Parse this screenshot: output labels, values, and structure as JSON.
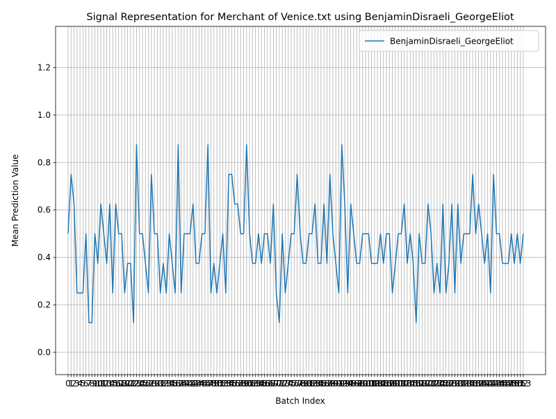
{
  "chart_data": {
    "type": "line",
    "title": "Signal Representation for Merchant of Venice.txt using BenjaminDisraeli_GeorgeEliot",
    "xlabel": "Batch Index",
    "ylabel": "Mean Prediction Value",
    "x": [
      0,
      1,
      2,
      3,
      4,
      5,
      6,
      7,
      8,
      9,
      10,
      11,
      12,
      13,
      14,
      15,
      16,
      17,
      18,
      19,
      20,
      21,
      22,
      23,
      24,
      25,
      26,
      27,
      28,
      29,
      30,
      31,
      32,
      33,
      34,
      35,
      36,
      37,
      38,
      39,
      40,
      41,
      42,
      43,
      44,
      45,
      46,
      47,
      48,
      49,
      50,
      51,
      52,
      53,
      54,
      55,
      56,
      57,
      58,
      59,
      60,
      61,
      62,
      63,
      64,
      65,
      66,
      67,
      68,
      69,
      70,
      71,
      72,
      73,
      74,
      75,
      76,
      77,
      78,
      79,
      80,
      81,
      82,
      83,
      84,
      85,
      86,
      87,
      88,
      89,
      90,
      91,
      92,
      93,
      94,
      95,
      96,
      97,
      98,
      99,
      100,
      101,
      102,
      103,
      104,
      105,
      106,
      107,
      108,
      109,
      110,
      111,
      112,
      113,
      114,
      115,
      116,
      117,
      118,
      119,
      120,
      121,
      122,
      123,
      124,
      125,
      126,
      127,
      128,
      129,
      130,
      131,
      132,
      133,
      134,
      135,
      136,
      137,
      138,
      139,
      140,
      141,
      142,
      143,
      144,
      145,
      146,
      147,
      148,
      149,
      150,
      151,
      152,
      153
    ],
    "series": [
      {
        "name": "BenjaminDisraeli_GeorgeEliot",
        "color": "#1f77b4",
        "values": [
          0.5,
          0.75,
          0.625,
          0.25,
          0.25,
          0.25,
          0.5,
          0.125,
          0.125,
          0.5,
          0.375,
          0.625,
          0.5,
          0.375,
          0.625,
          0.25,
          0.625,
          0.5,
          0.5,
          0.25,
          0.375,
          0.375,
          0.125,
          0.875,
          0.5,
          0.5,
          0.375,
          0.25,
          0.75,
          0.5,
          0.5,
          0.25,
          0.375,
          0.25,
          0.5,
          0.375,
          0.25,
          0.875,
          0.25,
          0.5,
          0.5,
          0.5,
          0.625,
          0.375,
          0.375,
          0.5,
          0.5,
          0.875,
          0.25,
          0.375,
          0.25,
          0.375,
          0.5,
          0.25,
          0.75,
          0.75,
          0.625,
          0.625,
          0.5,
          0.5,
          0.875,
          0.5,
          0.375,
          0.375,
          0.5,
          0.375,
          0.5,
          0.5,
          0.375,
          0.625,
          0.25,
          0.125,
          0.5,
          0.25,
          0.375,
          0.5,
          0.5,
          0.75,
          0.5,
          0.375,
          0.375,
          0.5,
          0.5,
          0.625,
          0.375,
          0.375,
          0.625,
          0.375,
          0.75,
          0.5,
          0.375,
          0.25,
          0.875,
          0.625,
          0.25,
          0.625,
          0.5,
          0.375,
          0.375,
          0.5,
          0.5,
          0.5,
          0.375,
          0.375,
          0.375,
          0.5,
          0.375,
          0.5,
          0.5,
          0.25,
          0.375,
          0.5,
          0.5,
          0.625,
          0.375,
          0.5,
          0.375,
          0.125,
          0.5,
          0.375,
          0.375,
          0.625,
          0.5,
          0.25,
          0.375,
          0.25,
          0.625,
          0.25,
          0.375,
          0.625,
          0.25,
          0.625,
          0.375,
          0.5,
          0.5,
          0.5,
          0.75,
          0.5,
          0.625,
          0.5,
          0.375,
          0.5,
          0.25,
          0.75,
          0.5,
          0.5,
          0.375,
          0.375,
          0.375,
          0.5,
          0.375,
          0.5,
          0.375,
          0.5
        ]
      }
    ],
    "xlim": [
      -4.2,
      160.5
    ],
    "xticks": [
      0,
      1,
      2,
      3,
      4,
      5,
      6,
      7,
      8,
      9,
      10,
      11,
      12,
      13,
      14,
      15,
      16,
      17,
      18,
      19,
      20,
      21,
      22,
      23,
      24,
      25,
      26,
      27,
      28,
      29,
      30,
      31,
      32,
      33,
      34,
      35,
      36,
      37,
      38,
      39,
      40,
      41,
      42,
      43,
      44,
      45,
      46,
      47,
      48,
      49,
      50,
      51,
      52,
      53,
      54,
      55,
      56,
      57,
      58,
      59,
      60,
      61,
      62,
      63,
      64,
      65,
      66,
      67,
      68,
      69,
      70,
      71,
      72,
      73,
      74,
      75,
      76,
      77,
      78,
      79,
      80,
      81,
      82,
      83,
      84,
      85,
      86,
      87,
      88,
      89,
      90,
      91,
      92,
      93,
      94,
      95,
      96,
      97,
      98,
      99,
      100,
      101,
      102,
      103,
      104,
      105,
      106,
      107,
      108,
      109,
      110,
      111,
      112,
      113,
      114,
      115,
      116,
      117,
      118,
      119,
      120,
      121,
      122,
      123,
      124,
      125,
      126,
      127,
      128,
      129,
      130,
      131,
      132,
      133,
      134,
      135,
      136,
      137,
      138,
      139,
      140,
      141,
      142,
      143,
      144,
      145,
      146,
      147,
      148,
      149,
      150,
      151,
      152,
      153
    ],
    "ylim": [
      -0.094,
      1.374
    ],
    "yticks": [
      {
        "value": 0,
        "label": "0.0"
      },
      0.2,
      0.4,
      0.6,
      0.8,
      {
        "value": 1,
        "label": "1.0"
      },
      1.2
    ],
    "grid": true,
    "legend": "upper right"
  }
}
